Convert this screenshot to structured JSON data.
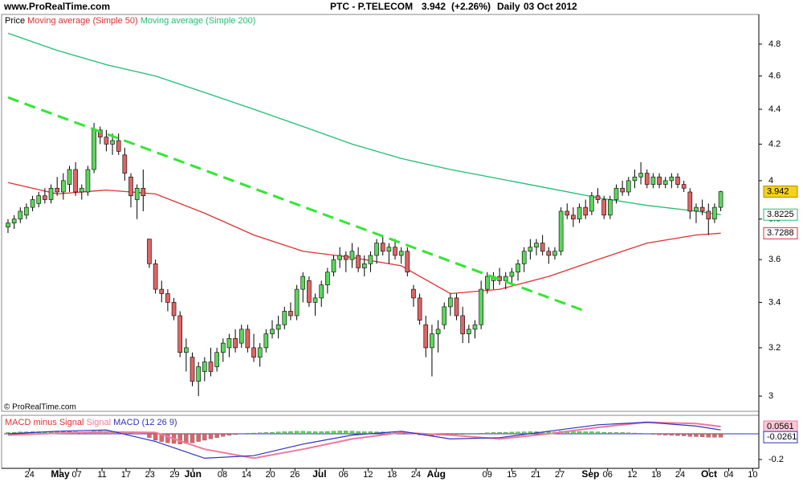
{
  "header": {
    "site": "www.ProRealTime.com",
    "symbol": "PTC - P.TELECOM",
    "change": "(+2.26%)",
    "period": "Daily",
    "date": "03 Oct 2012"
  },
  "footer": "© ProRealTime.com",
  "chart_data": [
    {
      "type": "candlestick",
      "legend_label": "Price",
      "up_color": "#5cd65c",
      "down_color": "#e06464",
      "log": true,
      "xlim": [
        -0.65,
        122.2
      ],
      "ylim": [
        2.946,
        4.994
      ],
      "yticks": [
        3,
        3.2,
        3.4,
        3.6,
        3.8,
        4,
        4.2,
        4.4,
        4.6,
        4.8
      ],
      "candles": [
        [
          3.76,
          3.8,
          3.73,
          3.78
        ],
        [
          3.78,
          3.82,
          3.75,
          3.8
        ],
        [
          3.8,
          3.86,
          3.78,
          3.84
        ],
        [
          3.82,
          3.88,
          3.8,
          3.86
        ],
        [
          3.86,
          3.92,
          3.84,
          3.9
        ],
        [
          3.88,
          3.94,
          3.86,
          3.92
        ],
        [
          3.92,
          3.96,
          3.88,
          3.9
        ],
        [
          3.9,
          3.98,
          3.88,
          3.96
        ],
        [
          3.96,
          4.02,
          3.92,
          3.94
        ],
        [
          3.94,
          4.04,
          3.9,
          4
        ],
        [
          3.98,
          4.08,
          3.94,
          4.06
        ],
        [
          4.06,
          4.1,
          3.92,
          3.94
        ],
        [
          3.94,
          3.98,
          3.9,
          3.96
        ],
        [
          3.94,
          4.08,
          3.92,
          4.06
        ],
        [
          4.06,
          4.32,
          4.04,
          4.28
        ],
        [
          4.28,
          4.3,
          4.2,
          4.24
        ],
        [
          4.24,
          4.28,
          4.16,
          4.2
        ],
        [
          4.2,
          4.26,
          4.14,
          4.22
        ],
        [
          4.22,
          4.26,
          4.14,
          4.16
        ],
        [
          4.14,
          4.18,
          4,
          4.04
        ],
        [
          4.02,
          4.04,
          3.86,
          3.92
        ],
        [
          3.9,
          3.98,
          3.8,
          3.96
        ],
        [
          3.96,
          4.06,
          3.84,
          3.92
        ],
        [
          3.7,
          3.7,
          3.56,
          3.58
        ],
        [
          3.58,
          3.6,
          3.44,
          3.46
        ],
        [
          3.46,
          3.5,
          3.4,
          3.44
        ],
        [
          3.44,
          3.46,
          3.36,
          3.4
        ],
        [
          3.4,
          3.42,
          3.32,
          3.34
        ],
        [
          3.34,
          3.36,
          3.16,
          3.18
        ],
        [
          3.18,
          3.24,
          3.1,
          3.2
        ],
        [
          3.16,
          3.18,
          3.04,
          3.06
        ],
        [
          3.06,
          3.14,
          3,
          3.12
        ],
        [
          3.1,
          3.16,
          3.06,
          3.14
        ],
        [
          3.14,
          3.2,
          3.08,
          3.1
        ],
        [
          3.12,
          3.2,
          3.1,
          3.18
        ],
        [
          3.18,
          3.24,
          3.14,
          3.22
        ],
        [
          3.2,
          3.26,
          3.16,
          3.24
        ],
        [
          3.24,
          3.28,
          3.18,
          3.2
        ],
        [
          3.22,
          3.3,
          3.2,
          3.28
        ],
        [
          3.28,
          3.3,
          3.18,
          3.2
        ],
        [
          3.2,
          3.26,
          3.14,
          3.16
        ],
        [
          3.16,
          3.22,
          3.12,
          3.2
        ],
        [
          3.2,
          3.28,
          3.18,
          3.26
        ],
        [
          3.26,
          3.32,
          3.24,
          3.28
        ],
        [
          3.28,
          3.34,
          3.24,
          3.3
        ],
        [
          3.3,
          3.38,
          3.28,
          3.36
        ],
        [
          3.36,
          3.4,
          3.32,
          3.34
        ],
        [
          3.34,
          3.48,
          3.32,
          3.46
        ],
        [
          3.46,
          3.54,
          3.4,
          3.52
        ],
        [
          3.5,
          3.52,
          3.38,
          3.4
        ],
        [
          3.4,
          3.44,
          3.34,
          3.42
        ],
        [
          3.42,
          3.5,
          3.38,
          3.48
        ],
        [
          3.48,
          3.56,
          3.44,
          3.54
        ],
        [
          3.54,
          3.62,
          3.52,
          3.6
        ],
        [
          3.6,
          3.66,
          3.56,
          3.62
        ],
        [
          3.62,
          3.64,
          3.54,
          3.6
        ],
        [
          3.6,
          3.68,
          3.56,
          3.64
        ],
        [
          3.62,
          3.66,
          3.54,
          3.56
        ],
        [
          3.56,
          3.62,
          3.52,
          3.58
        ],
        [
          3.58,
          3.64,
          3.54,
          3.62
        ],
        [
          3.62,
          3.7,
          3.58,
          3.68
        ],
        [
          3.68,
          3.72,
          3.62,
          3.64
        ],
        [
          3.64,
          3.68,
          3.58,
          3.66
        ],
        [
          3.66,
          3.7,
          3.6,
          3.62
        ],
        [
          3.62,
          3.66,
          3.58,
          3.64
        ],
        [
          3.64,
          3.66,
          3.52,
          3.54
        ],
        [
          3.46,
          3.48,
          3.38,
          3.42
        ],
        [
          3.42,
          3.44,
          3.3,
          3.32
        ],
        [
          3.3,
          3.34,
          3.16,
          3.2
        ],
        [
          3.2,
          3.3,
          3.08,
          3.26
        ],
        [
          3.26,
          3.32,
          3.18,
          3.28
        ],
        [
          3.3,
          3.4,
          3.28,
          3.38
        ],
        [
          3.38,
          3.44,
          3.34,
          3.42
        ],
        [
          3.42,
          3.44,
          3.32,
          3.34
        ],
        [
          3.34,
          3.38,
          3.22,
          3.26
        ],
        [
          3.26,
          3.3,
          3.22,
          3.28
        ],
        [
          3.28,
          3.32,
          3.24,
          3.3
        ],
        [
          3.3,
          3.5,
          3.28,
          3.46
        ],
        [
          3.46,
          3.54,
          3.44,
          3.52
        ],
        [
          3.5,
          3.54,
          3.46,
          3.52
        ],
        [
          3.52,
          3.56,
          3.48,
          3.5
        ],
        [
          3.5,
          3.54,
          3.46,
          3.52
        ],
        [
          3.52,
          3.56,
          3.48,
          3.54
        ],
        [
          3.54,
          3.6,
          3.5,
          3.58
        ],
        [
          3.58,
          3.66,
          3.54,
          3.64
        ],
        [
          3.64,
          3.7,
          3.6,
          3.66
        ],
        [
          3.66,
          3.7,
          3.62,
          3.68
        ],
        [
          3.68,
          3.72,
          3.62,
          3.64
        ],
        [
          3.64,
          3.66,
          3.58,
          3.62
        ],
        [
          3.62,
          3.66,
          3.6,
          3.64
        ],
        [
          3.64,
          3.86,
          3.62,
          3.84
        ],
        [
          3.84,
          3.88,
          3.8,
          3.82
        ],
        [
          3.82,
          3.86,
          3.76,
          3.8
        ],
        [
          3.8,
          3.88,
          3.78,
          3.86
        ],
        [
          3.86,
          3.9,
          3.8,
          3.82
        ],
        [
          3.84,
          3.94,
          3.82,
          3.92
        ],
        [
          3.92,
          3.96,
          3.88,
          3.9
        ],
        [
          3.9,
          3.92,
          3.8,
          3.82
        ],
        [
          3.82,
          3.92,
          3.8,
          3.9
        ],
        [
          3.9,
          3.98,
          3.88,
          3.96
        ],
        [
          3.96,
          4,
          3.92,
          3.94
        ],
        [
          3.94,
          4.02,
          3.92,
          4
        ],
        [
          4,
          4.06,
          3.96,
          4.02
        ],
        [
          4.02,
          4.1,
          3.98,
          4.04
        ],
        [
          4.04,
          4.06,
          3.96,
          3.98
        ],
        [
          3.98,
          4.04,
          3.96,
          4.02
        ],
        [
          4.02,
          4.04,
          3.96,
          3.98
        ],
        [
          3.98,
          4.02,
          3.96,
          4
        ],
        [
          4,
          4.04,
          3.96,
          4.02
        ],
        [
          4.02,
          4.04,
          3.96,
          3.98
        ],
        [
          3.98,
          4,
          3.94,
          3.96
        ],
        [
          3.94,
          3.96,
          3.8,
          3.84
        ],
        [
          3.84,
          3.88,
          3.78,
          3.86
        ],
        [
          3.86,
          3.9,
          3.82,
          3.84
        ],
        [
          3.84,
          3.88,
          3.72,
          3.8
        ],
        [
          3.8,
          3.88,
          3.78,
          3.86
        ],
        [
          3.86,
          3.946,
          3.84,
          3.942
        ]
      ],
      "series": [
        {
          "name": "Moving average (Simple 50)",
          "color": "#e03030",
          "x": [
            0,
            8,
            16,
            24,
            32,
            40,
            48,
            56,
            64,
            72,
            80,
            88,
            96,
            104,
            112,
            116
          ],
          "values": [
            3.99,
            3.93,
            3.95,
            3.93,
            3.83,
            3.72,
            3.64,
            3.61,
            3.57,
            3.44,
            3.46,
            3.52,
            3.6,
            3.68,
            3.72,
            3.7288
          ]
        },
        {
          "name": "Moving average (Simple 200)",
          "color": "#1fbf70",
          "x": [
            0,
            8,
            16,
            24,
            32,
            40,
            48,
            56,
            64,
            72,
            80,
            88,
            96,
            104,
            112,
            116
          ],
          "values": [
            4.87,
            4.76,
            4.67,
            4.6,
            4.5,
            4.4,
            4.3,
            4.2,
            4.12,
            4.06,
            4.01,
            3.96,
            3.91,
            3.87,
            3.84,
            3.8225
          ]
        }
      ],
      "trendline": {
        "color": "#33e633",
        "x": [
          0,
          94
        ],
        "values": [
          4.47,
          3.36
        ]
      }
    },
    {
      "type": "macd",
      "xlim": [
        -0.65,
        122.2
      ],
      "ylim": [
        -0.2625,
        0.1375
      ],
      "yticks": [
        -0.2
      ],
      "xticks": [
        {
          "value": 3.5,
          "label": "24"
        },
        {
          "value": 11.2,
          "label": "07"
        },
        {
          "value": 15.3,
          "label": "11"
        },
        {
          "value": 19.2,
          "label": "17"
        },
        {
          "value": 23.1,
          "label": "23"
        },
        {
          "value": 27.1,
          "label": "29"
        },
        {
          "value": 34.9,
          "label": "08"
        },
        {
          "value": 38.8,
          "label": "14"
        },
        {
          "value": 42.7,
          "label": "20"
        },
        {
          "value": 46.7,
          "label": "26"
        },
        {
          "value": 54.6,
          "label": "06"
        },
        {
          "value": 58.6,
          "label": "12"
        },
        {
          "value": 62.5,
          "label": "18"
        },
        {
          "value": 66.4,
          "label": "24"
        },
        {
          "value": 78.0,
          "label": "09"
        },
        {
          "value": 82.0,
          "label": "15"
        },
        {
          "value": 85.9,
          "label": "21"
        },
        {
          "value": 89.8,
          "label": "27"
        },
        {
          "value": 97.6,
          "label": "06"
        },
        {
          "value": 101.6,
          "label": "12"
        },
        {
          "value": 105.5,
          "label": "18"
        },
        {
          "value": 109.4,
          "label": "24"
        },
        {
          "value": 117.3,
          "label": "04"
        },
        {
          "value": 121.2,
          "label": "10"
        }
      ],
      "month_ticks": [
        {
          "value": 8.5,
          "label": "May"
        },
        {
          "value": 30.1,
          "label": "Jun"
        },
        {
          "value": 50.7,
          "label": "Jul"
        },
        {
          "value": 69.7,
          "label": "Aug"
        },
        {
          "value": 94.8,
          "label": "Sep"
        },
        {
          "value": 114.1,
          "label": "Oct"
        }
      ],
      "histogram": {
        "name": "MACD minus Signal",
        "color": "#e03030",
        "up_color": "#5cd65c",
        "down_color": "#e06464",
        "values": [
          0.01,
          0.012,
          0.014,
          0.015,
          0.016,
          0.016,
          0.015,
          0.015,
          0.016,
          0.017,
          0.018,
          0.016,
          0.014,
          0.015,
          0.02,
          0.022,
          0.02,
          0.018,
          0.016,
          0.012,
          0.006,
          0.002,
          0,
          -0.03,
          -0.05,
          -0.06,
          -0.07,
          -0.075,
          -0.08,
          -0.075,
          -0.07,
          -0.06,
          -0.05,
          -0.04,
          -0.03,
          -0.02,
          -0.012,
          -0.006,
          0,
          0.004,
          0.006,
          0.008,
          0.01,
          0.012,
          0.014,
          0.016,
          0.018,
          0.02,
          0.02,
          0.018,
          0.016,
          0.016,
          0.018,
          0.02,
          0.022,
          0.022,
          0.02,
          0.018,
          0.016,
          0.016,
          0.015,
          0.014,
          0.012,
          0.01,
          0.008,
          0.004,
          -0.002,
          -0.008,
          -0.012,
          -0.014,
          -0.012,
          -0.01,
          -0.006,
          -0.004,
          -0.004,
          -0.003,
          0,
          0.004,
          0.008,
          0.01,
          0.012,
          0.012,
          0.013,
          0.014,
          0.015,
          0.016,
          0.016,
          0.015,
          0.014,
          0.014,
          0.02,
          0.022,
          0.02,
          0.018,
          0.016,
          0.016,
          0.015,
          0.012,
          0.01,
          0.01,
          0.01,
          0.008,
          0.006,
          0.004,
          0,
          -0.004,
          -0.008,
          -0.01,
          -0.012,
          -0.014,
          -0.016,
          -0.02,
          -0.022,
          -0.024,
          -0.026,
          -0.026,
          -0.0261
        ]
      },
      "series": [
        {
          "name": "Signal",
          "color": "#f07a9a",
          "x": [
            0,
            8,
            16,
            24,
            32,
            40,
            48,
            56,
            64,
            72,
            80,
            88,
            96,
            104,
            112,
            116
          ],
          "values": [
            -0.01,
            0.005,
            0.015,
            0.01,
            -0.12,
            -0.19,
            -0.12,
            -0.04,
            0.01,
            -0.01,
            -0.04,
            0,
            0.05,
            0.09,
            0.08,
            0.0561
          ]
        },
        {
          "name": "MACD (12 26 9)",
          "color": "#3030c0",
          "x": [
            0,
            8,
            16,
            24,
            32,
            40,
            48,
            56,
            64,
            72,
            80,
            88,
            96,
            104,
            112,
            116
          ],
          "values": [
            0,
            0.02,
            0.03,
            -0.06,
            -0.19,
            -0.17,
            -0.08,
            -0.01,
            0.02,
            -0.04,
            -0.03,
            0.02,
            0.07,
            0.09,
            0.06,
            0.03
          ]
        }
      ]
    }
  ]
}
